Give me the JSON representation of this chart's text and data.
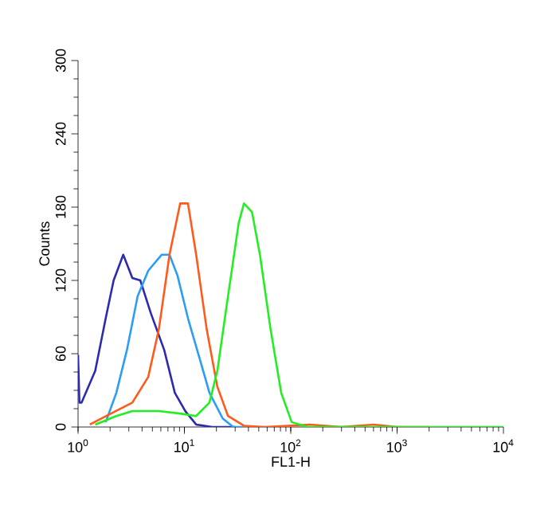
{
  "chart_data": {
    "type": "line",
    "xlabel": "FL1-H",
    "ylabel": "Counts",
    "log": "x",
    "xlim": [
      1,
      10000
    ],
    "ylim": [
      0,
      300
    ],
    "xticks": [
      {
        "value": 1,
        "label": "10$^{0}$"
      },
      {
        "value": 10,
        "label": "10$^{1}$"
      },
      {
        "value": 100,
        "label": "10$^{2}$"
      },
      {
        "value": 1000,
        "label": "10$^{3}$"
      },
      {
        "value": 10000,
        "label": "10$^{4}$"
      }
    ],
    "yticks": [
      0,
      60,
      120,
      180,
      240,
      300
    ],
    "line_style": "solid",
    "marker": "none",
    "series": [
      {
        "color": "#2b2bb0",
        "x": [
          1.0,
          1.03,
          1.08,
          1.45,
          1.82,
          2.16,
          2.66,
          3.24,
          3.85,
          4.84,
          6.46,
          8.13,
          10.2,
          12.9,
          18.2,
          30
        ],
        "values": [
          59,
          20,
          20,
          46,
          89,
          120,
          141,
          122,
          120,
          93,
          63,
          28,
          13,
          2,
          0,
          0
        ]
      },
      {
        "color": "#2a9df4",
        "x": [
          1.82,
          2.29,
          2.88,
          3.63,
          4.57,
          6.1,
          7.24,
          8.61,
          10.8,
          13.6,
          17.2,
          22.9,
          28.8,
          40
        ],
        "values": [
          4,
          28,
          63,
          107,
          128,
          141,
          141,
          124,
          89,
          59,
          28,
          7,
          0,
          0
        ]
      },
      {
        "color": "#ff5a1a",
        "x": [
          1.29,
          2.04,
          3.24,
          4.57,
          5.75,
          7.24,
          9.12,
          10.8,
          12.9,
          16.2,
          20.4,
          25.7,
          36.3,
          57.5,
          150,
          300,
          600,
          1000,
          2000
        ],
        "values": [
          2,
          11,
          20,
          41,
          80,
          141,
          183,
          183,
          141,
          80,
          33,
          9,
          1,
          0,
          2,
          0,
          2,
          0,
          0
        ]
      },
      {
        "color": "#22ee22",
        "x": [
          1.45,
          2.29,
          3.24,
          5.75,
          9.12,
          12.9,
          17.2,
          20.4,
          25.7,
          32.4,
          36.3,
          43.2,
          51.3,
          64.6,
          81.3,
          102,
          145,
          1000,
          10000
        ],
        "values": [
          2,
          9,
          13,
          13,
          11,
          9,
          20,
          46,
          107,
          167,
          183,
          176,
          141,
          80,
          28,
          4,
          0,
          0,
          0
        ]
      }
    ]
  }
}
